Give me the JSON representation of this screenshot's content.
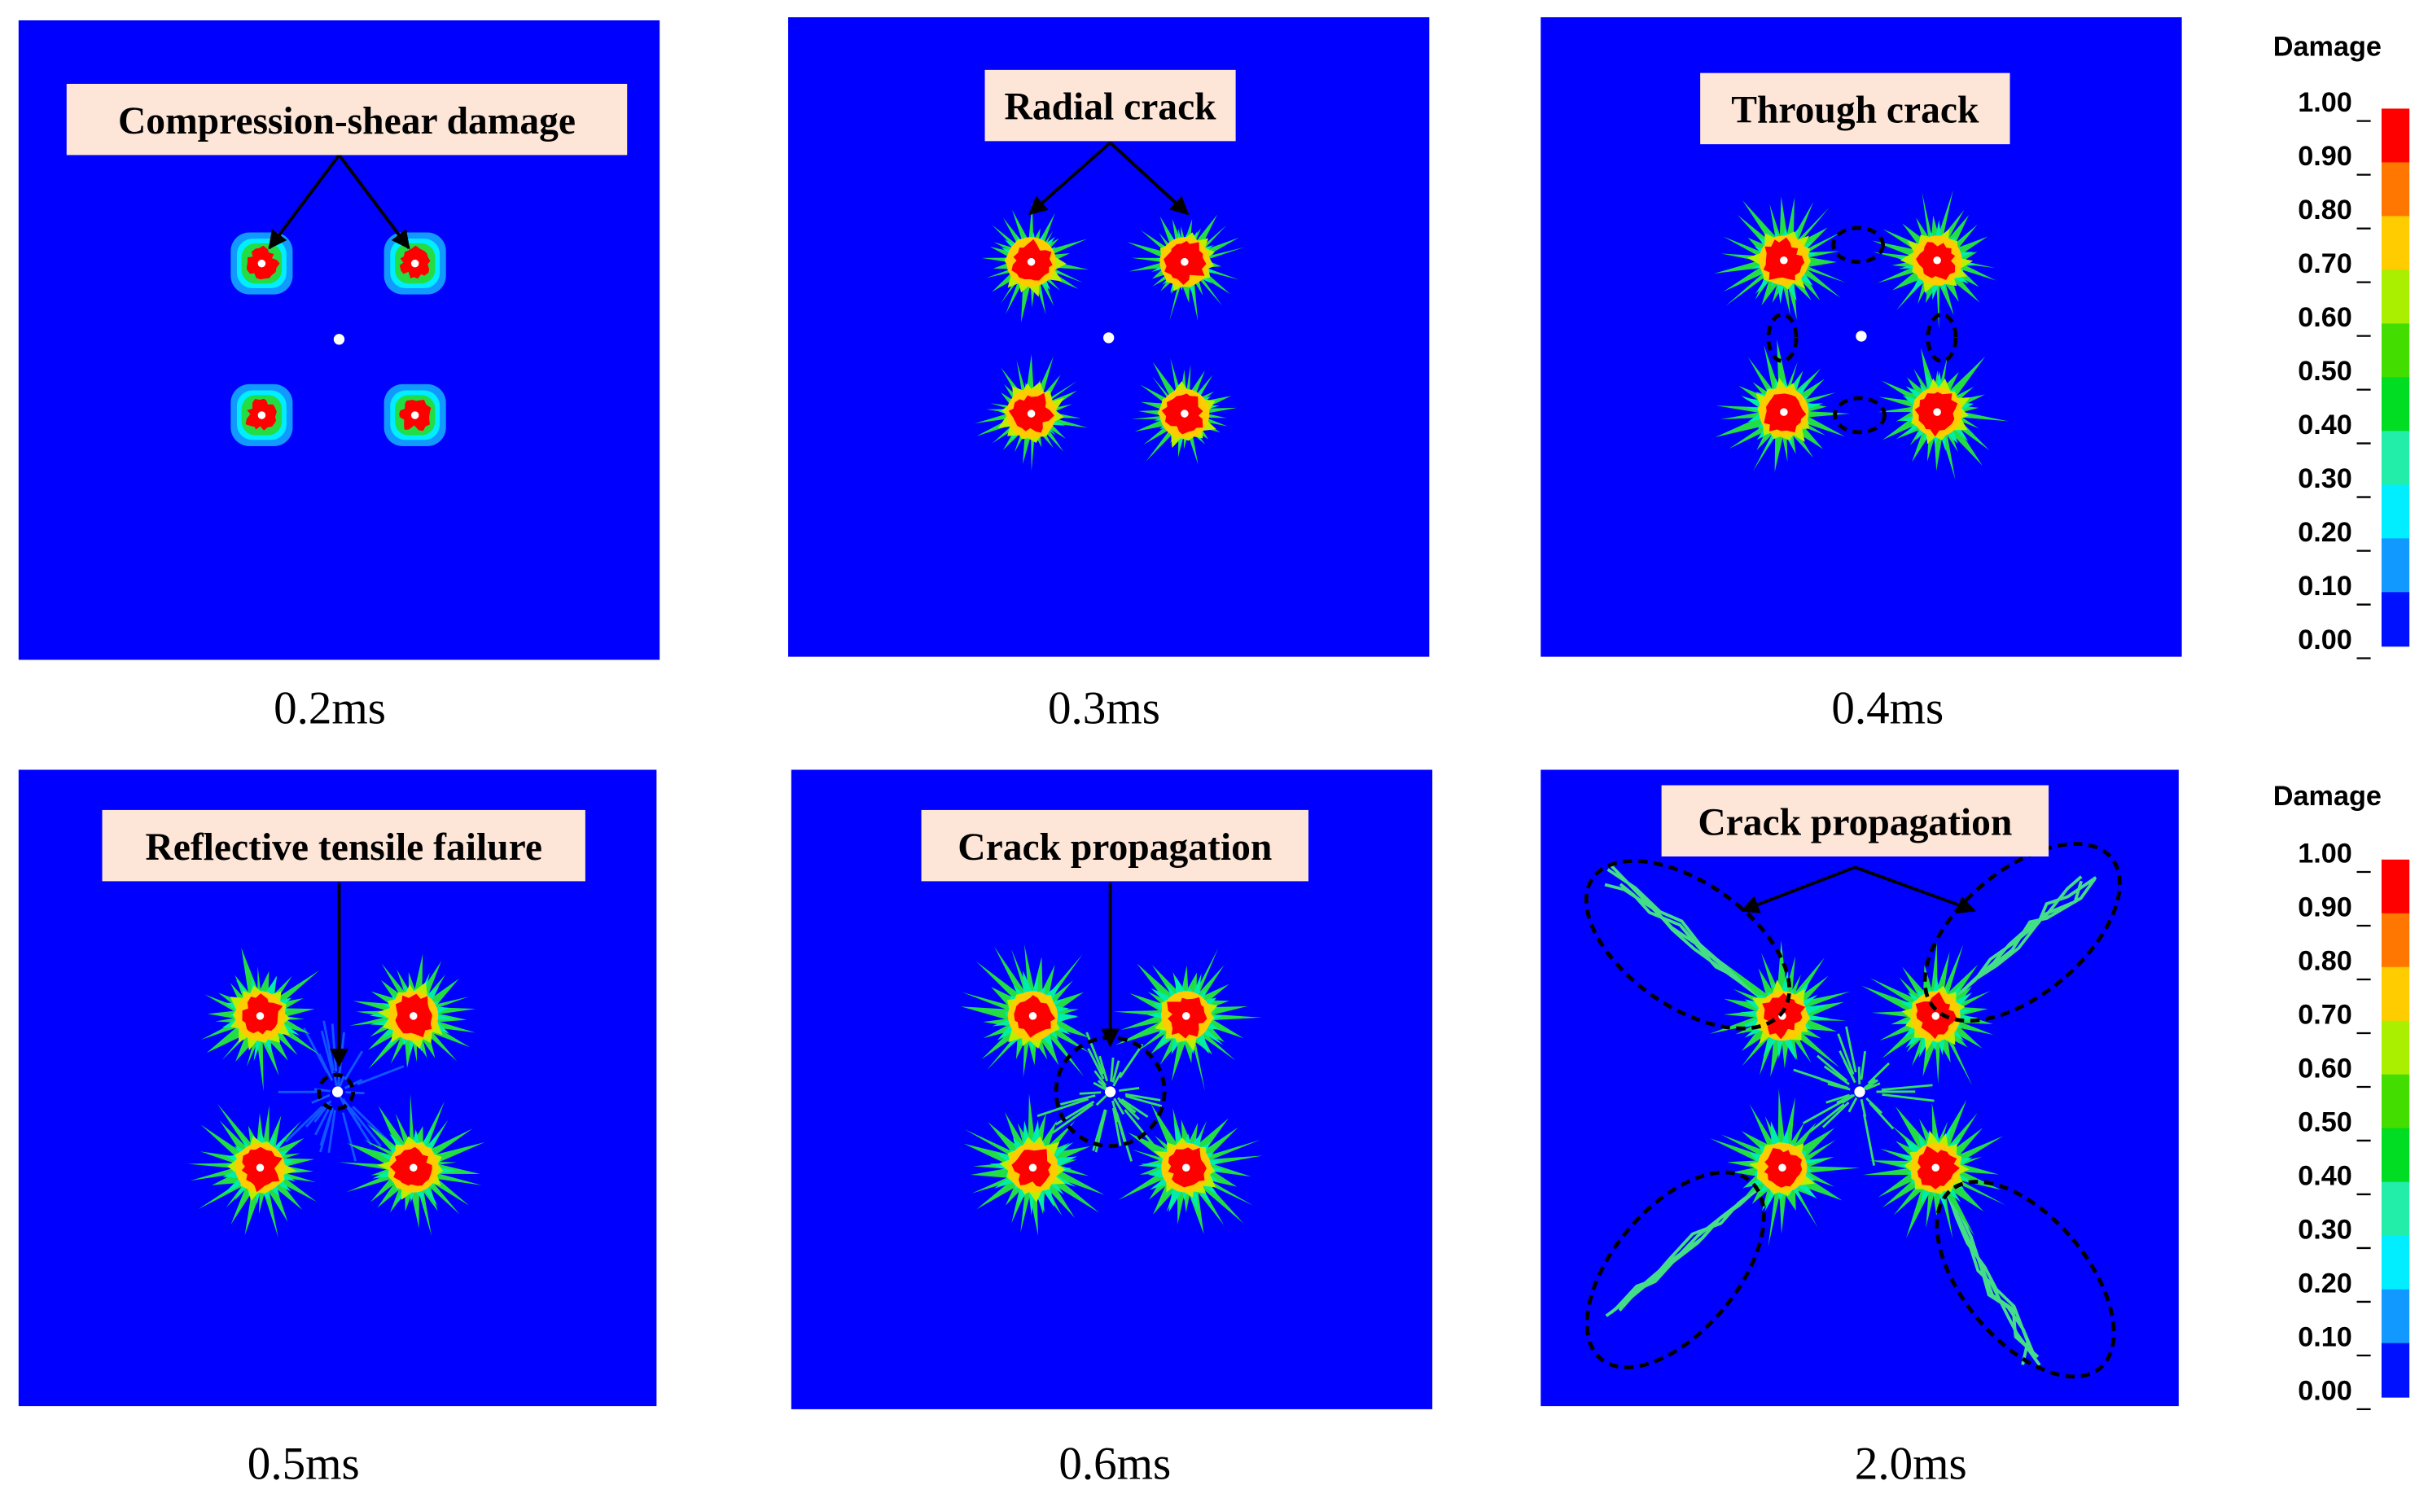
{
  "panels": [
    {
      "time": "0.2ms",
      "annotation": "Compression-shear damage"
    },
    {
      "time": "0.3ms",
      "annotation": "Radial crack"
    },
    {
      "time": "0.4ms",
      "annotation": "Through crack"
    },
    {
      "time": "0.5ms",
      "annotation": "Reflective tensile failure"
    },
    {
      "time": "0.6ms",
      "annotation": "Crack propagation"
    },
    {
      "time": "2.0ms",
      "annotation": "Crack propagation"
    }
  ],
  "colorbars": [
    {
      "title": "Damage",
      "ticks": [
        "1.00",
        "0.90",
        "0.80",
        "0.70",
        "0.60",
        "0.50",
        "0.40",
        "0.30",
        "0.20",
        "0.10",
        "0.00"
      ]
    },
    {
      "title": "Damage",
      "ticks": [
        "1.00",
        "0.90",
        "0.80",
        "0.70",
        "0.60",
        "0.50",
        "0.40",
        "0.30",
        "0.20",
        "0.10",
        "0.00"
      ]
    }
  ],
  "colorbar_colors": [
    "#ff0000",
    "#ff7700",
    "#ffcc00",
    "#aaee00",
    "#44dd00",
    "#00dd22",
    "#22eeaa",
    "#00eeff",
    "#1199ff",
    "#0011ff"
  ]
}
